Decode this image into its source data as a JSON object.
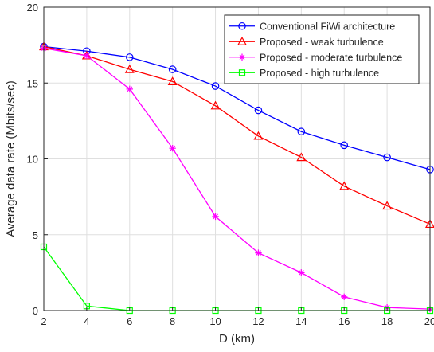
{
  "chart_data": {
    "type": "line",
    "title": "",
    "xlabel": "D (km)",
    "ylabel": "Average data rate (Mbits/sec)",
    "xlim": [
      2,
      20
    ],
    "ylim": [
      0,
      20
    ],
    "xticks": [
      2,
      4,
      6,
      8,
      10,
      12,
      14,
      16,
      18,
      20
    ],
    "yticks": [
      0,
      5,
      10,
      15,
      20
    ],
    "grid": true,
    "legend_position": "top-right",
    "x": [
      2,
      4,
      6,
      8,
      10,
      12,
      14,
      16,
      18,
      20
    ],
    "series": [
      {
        "name": "Conventional FiWi architecture",
        "color": "#0000ff",
        "marker": "circle",
        "values": [
          17.4,
          17.1,
          16.7,
          15.9,
          14.8,
          13.2,
          11.8,
          10.9,
          10.1,
          9.3
        ]
      },
      {
        "name": "Proposed - weak turbulence",
        "color": "#ff0000",
        "marker": "triangle",
        "values": [
          17.4,
          16.8,
          15.9,
          15.1,
          13.5,
          11.5,
          10.1,
          8.2,
          6.9,
          5.7
        ]
      },
      {
        "name": "Proposed - moderate turbulence",
        "color": "#ff00ff",
        "marker": "asterisk",
        "values": [
          17.3,
          16.8,
          14.6,
          10.7,
          6.2,
          3.8,
          2.5,
          0.9,
          0.2,
          0.1
        ]
      },
      {
        "name": "Proposed - high turbulence",
        "color": "#00ff00",
        "marker": "square",
        "values": [
          4.2,
          0.3,
          0.0,
          0.0,
          0.0,
          0.0,
          0.0,
          0.0,
          0.0,
          0.0
        ]
      }
    ]
  }
}
